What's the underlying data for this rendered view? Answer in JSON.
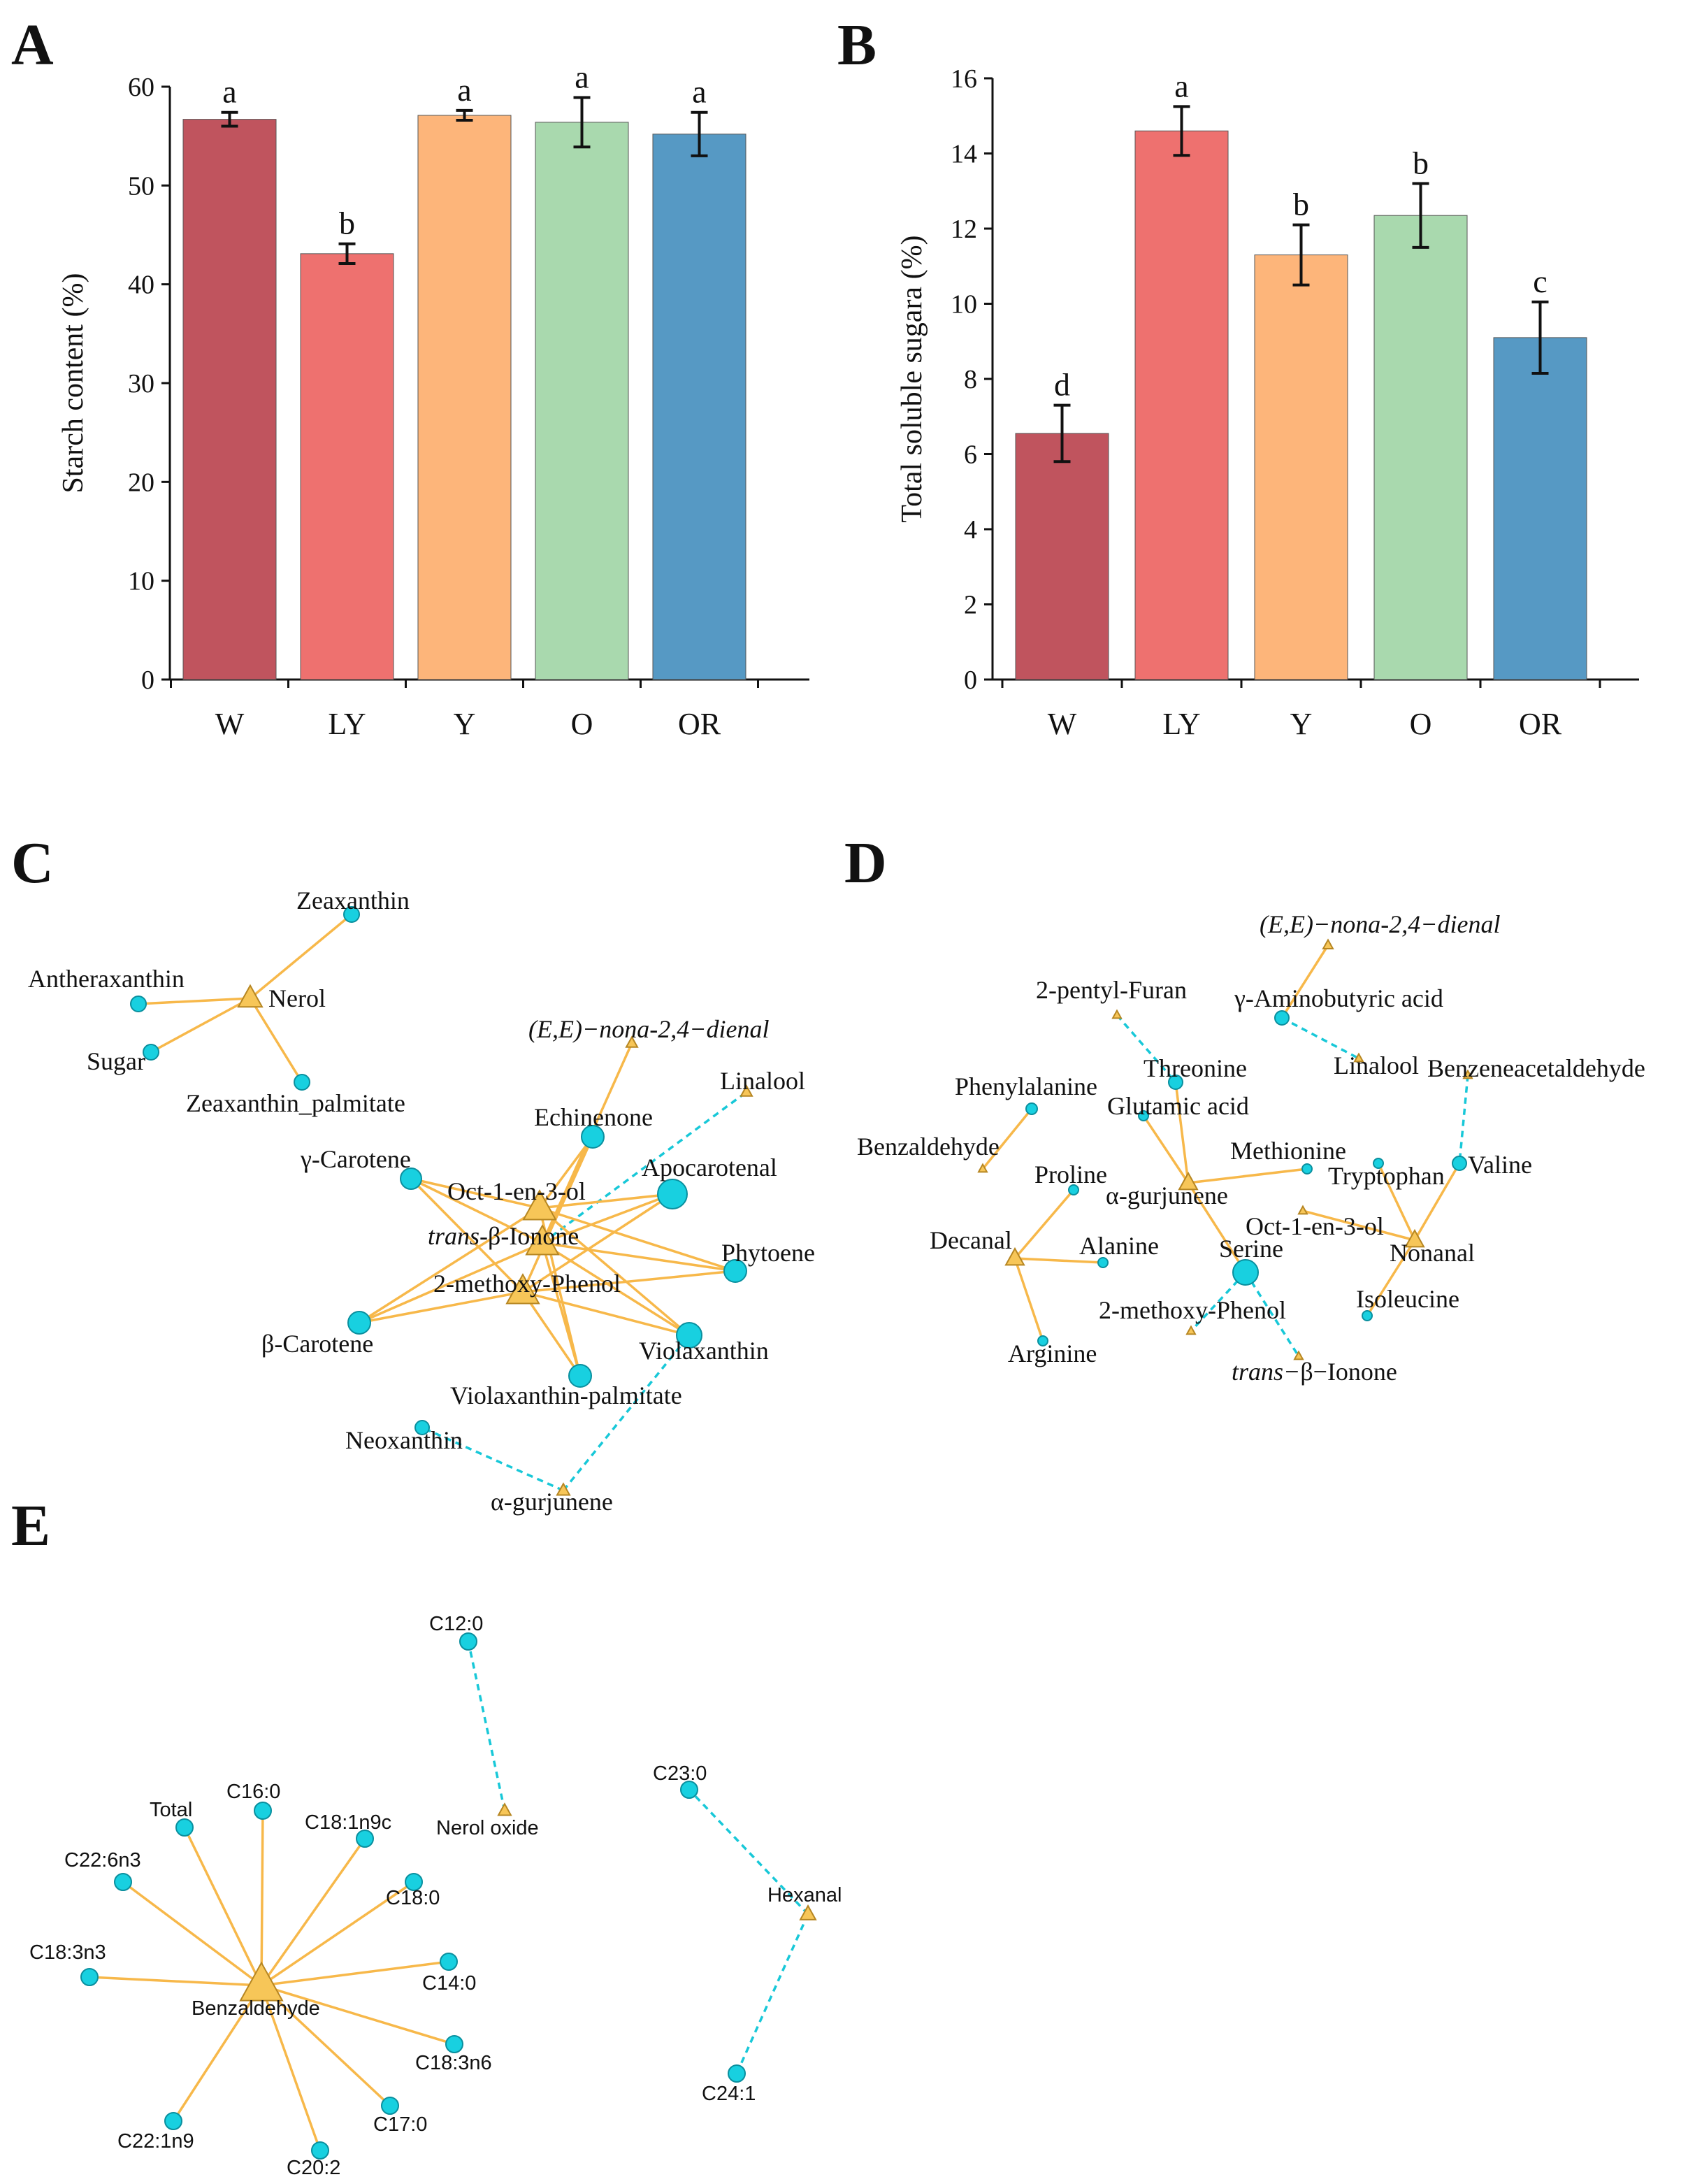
{
  "panels": {
    "A": "A",
    "B": "B",
    "C": "C",
    "D": "D",
    "E": "E"
  },
  "chart_data": [
    {
      "id": "A",
      "type": "bar",
      "title": "",
      "categories": [
        "W",
        "LY",
        "Y",
        "O",
        "OR"
      ],
      "values": [
        56.7,
        43.1,
        57.1,
        56.4,
        55.2
      ],
      "errors": [
        0.7,
        1.0,
        0.5,
        2.5,
        2.2
      ],
      "significance": [
        "a",
        "b",
        "a",
        "a",
        "a"
      ],
      "colors": [
        "#c0545e",
        "#ee716f",
        "#fdb57a",
        "#a9d9ae",
        "#5699c4"
      ],
      "xlabel": "",
      "ylabel": "Starch content  (%)",
      "ylim": [
        0,
        60
      ],
      "yticks": [
        0,
        10,
        20,
        30,
        40,
        50,
        60
      ],
      "grid": false
    },
    {
      "id": "B",
      "type": "bar",
      "title": "",
      "categories": [
        "W",
        "LY",
        "Y",
        "O",
        "OR"
      ],
      "values": [
        6.55,
        14.6,
        11.3,
        12.35,
        9.1
      ],
      "errors": [
        0.75,
        0.65,
        0.8,
        0.85,
        0.95
      ],
      "significance": [
        "d",
        "a",
        "b",
        "b",
        "c"
      ],
      "colors": [
        "#c0545e",
        "#ee716f",
        "#fdb57a",
        "#a9d9ae",
        "#5699c4"
      ],
      "xlabel": "",
      "ylabel": "Total soluble sugara (%)",
      "ylim": [
        0,
        16
      ],
      "yticks": [
        0,
        2,
        4,
        6,
        8,
        10,
        12,
        14,
        16
      ],
      "grid": false
    }
  ],
  "networks": {
    "C": {
      "nodes": [
        {
          "id": "zea",
          "label": "Zeaxanthin",
          "kind": "metabolite"
        },
        {
          "id": "anth",
          "label": "Antheraxanthin",
          "kind": "metabolite"
        },
        {
          "id": "nerol",
          "label": "Nerol",
          "kind": "volatile"
        },
        {
          "id": "sugar",
          "label": "Sugar",
          "kind": "metabolite"
        },
        {
          "id": "zeap",
          "label": "Zeaxanthin_palmitate",
          "kind": "metabolite"
        },
        {
          "id": "ee",
          "label": "(E,E)−nona-2,4−dienal",
          "kind": "volatile",
          "italic": true
        },
        {
          "id": "lin",
          "label": "Linalool",
          "kind": "volatile"
        },
        {
          "id": "ech",
          "label": "Echinenone",
          "kind": "metabolite"
        },
        {
          "id": "apo",
          "label": "Apocarotenal",
          "kind": "metabolite"
        },
        {
          "id": "gcar",
          "label": "γ-Carotene",
          "kind": "metabolite"
        },
        {
          "id": "oct",
          "label": "Oct-1-en-3-ol",
          "kind": "volatile"
        },
        {
          "id": "ion",
          "label": "β-Ionone",
          "kind": "volatile",
          "prefix": "trans-"
        },
        {
          "id": "phy",
          "label": "Phytoene",
          "kind": "metabolite"
        },
        {
          "id": "mph",
          "label": "2-methoxy-Phenol",
          "kind": "volatile"
        },
        {
          "id": "bcar",
          "label": "β-Carotene",
          "kind": "metabolite"
        },
        {
          "id": "vio",
          "label": "Violaxanthin",
          "kind": "metabolite"
        },
        {
          "id": "viop",
          "label": "Violaxanthin-palmitate",
          "kind": "metabolite"
        },
        {
          "id": "neo",
          "label": "Neoxanthin",
          "kind": "metabolite"
        },
        {
          "id": "agur",
          "label": "α-gurjunene",
          "kind": "volatile"
        }
      ],
      "edges": [
        [
          "nerol",
          "zea",
          "pos"
        ],
        [
          "nerol",
          "anth",
          "pos"
        ],
        [
          "nerol",
          "sugar",
          "pos"
        ],
        [
          "nerol",
          "zeap",
          "pos"
        ],
        [
          "ion",
          "ee",
          "pos"
        ],
        [
          "ion",
          "lin",
          "neg"
        ],
        [
          "oct",
          "ech",
          "pos"
        ],
        [
          "oct",
          "apo",
          "pos"
        ],
        [
          "oct",
          "gcar",
          "pos"
        ],
        [
          "oct",
          "phy",
          "pos"
        ],
        [
          "oct",
          "bcar",
          "pos"
        ],
        [
          "oct",
          "vio",
          "pos"
        ],
        [
          "oct",
          "viop",
          "pos"
        ],
        [
          "ion",
          "ech",
          "pos"
        ],
        [
          "ion",
          "apo",
          "pos"
        ],
        [
          "ion",
          "gcar",
          "pos"
        ],
        [
          "ion",
          "phy",
          "pos"
        ],
        [
          "ion",
          "bcar",
          "pos"
        ],
        [
          "ion",
          "vio",
          "pos"
        ],
        [
          "ion",
          "viop",
          "pos"
        ],
        [
          "mph",
          "ech",
          "pos"
        ],
        [
          "mph",
          "apo",
          "pos"
        ],
        [
          "mph",
          "gcar",
          "pos"
        ],
        [
          "mph",
          "phy",
          "pos"
        ],
        [
          "mph",
          "bcar",
          "pos"
        ],
        [
          "mph",
          "vio",
          "pos"
        ],
        [
          "mph",
          "viop",
          "pos"
        ],
        [
          "agur",
          "neo",
          "neg"
        ],
        [
          "agur",
          "vio",
          "neg"
        ]
      ]
    },
    "D": {
      "nodes": [
        {
          "id": "ee",
          "label": "(E,E)−nona-2,4−dienal",
          "kind": "volatile",
          "italic": true
        },
        {
          "id": "pf",
          "label": "2-pentyl-Furan",
          "kind": "volatile"
        },
        {
          "id": "gaba",
          "label": "γ-Aminobutyric acid",
          "kind": "metabolite"
        },
        {
          "id": "lin",
          "label": "Linalool",
          "kind": "volatile"
        },
        {
          "id": "phe",
          "label": "Phenylalanine",
          "kind": "metabolite"
        },
        {
          "id": "thr",
          "label": "Threonine",
          "kind": "metabolite"
        },
        {
          "id": "bzd",
          "label": "Benzeneacetaldehyde",
          "kind": "volatile"
        },
        {
          "id": "glu",
          "label": "Glutamic acid",
          "kind": "metabolite"
        },
        {
          "id": "bza",
          "label": "Benzaldehyde",
          "kind": "volatile"
        },
        {
          "id": "met",
          "label": "Methionine",
          "kind": "metabolite"
        },
        {
          "id": "pro",
          "label": "Proline",
          "kind": "metabolite"
        },
        {
          "id": "agur",
          "label": "α-gurjunene",
          "kind": "volatile"
        },
        {
          "id": "trp",
          "label": "Tryptophan",
          "kind": "metabolite"
        },
        {
          "id": "val",
          "label": "Valine",
          "kind": "metabolite"
        },
        {
          "id": "oct",
          "label": "Oct-1-en-3-ol",
          "kind": "volatile"
        },
        {
          "id": "dec",
          "label": "Decanal",
          "kind": "volatile"
        },
        {
          "id": "ala",
          "label": "Alanine",
          "kind": "metabolite"
        },
        {
          "id": "ser",
          "label": "Serine",
          "kind": "metabolite"
        },
        {
          "id": "non",
          "label": "Nonanal",
          "kind": "volatile"
        },
        {
          "id": "iso",
          "label": "Isoleucine",
          "kind": "metabolite"
        },
        {
          "id": "mph",
          "label": "2-methoxy-Phenol",
          "kind": "volatile"
        },
        {
          "id": "arg",
          "label": "Arginine",
          "kind": "metabolite"
        },
        {
          "id": "ion",
          "label": "β−Ionone",
          "kind": "volatile",
          "prefix": "trans−"
        }
      ],
      "edges": [
        [
          "ee",
          "gaba",
          "pos"
        ],
        [
          "gaba",
          "lin",
          "neg"
        ],
        [
          "pf",
          "thr",
          "neg"
        ],
        [
          "bzd",
          "val",
          "neg"
        ],
        [
          "phe",
          "bza",
          "pos"
        ],
        [
          "agur",
          "glu",
          "pos"
        ],
        [
          "agur",
          "thr",
          "pos"
        ],
        [
          "agur",
          "met",
          "pos"
        ],
        [
          "agur",
          "ser",
          "pos"
        ],
        [
          "dec",
          "pro",
          "pos"
        ],
        [
          "dec",
          "ala",
          "pos"
        ],
        [
          "dec",
          "arg",
          "pos"
        ],
        [
          "non",
          "trp",
          "pos"
        ],
        [
          "non",
          "val",
          "pos"
        ],
        [
          "non",
          "iso",
          "pos"
        ],
        [
          "non",
          "oct",
          "pos"
        ],
        [
          "ser",
          "mph",
          "neg"
        ],
        [
          "ser",
          "ion",
          "neg"
        ]
      ]
    },
    "E": {
      "nodes": [
        {
          "id": "c120",
          "label": "C12:0",
          "kind": "metabolite"
        },
        {
          "id": "no",
          "label": "Nerol oxide",
          "kind": "volatile"
        },
        {
          "id": "c230",
          "label": "C23:0",
          "kind": "metabolite"
        },
        {
          "id": "hex",
          "label": "Hexanal",
          "kind": "volatile"
        },
        {
          "id": "c241",
          "label": "C24:1",
          "kind": "metabolite"
        },
        {
          "id": "tot",
          "label": "Total",
          "kind": "metabolite"
        },
        {
          "id": "c160",
          "label": "C16:0",
          "kind": "metabolite"
        },
        {
          "id": "c181",
          "label": "C18:1n9c",
          "kind": "metabolite"
        },
        {
          "id": "c226",
          "label": "C22:6n3",
          "kind": "metabolite"
        },
        {
          "id": "c180",
          "label": "C18:0",
          "kind": "metabolite"
        },
        {
          "id": "c183n3",
          "label": "C18:3n3",
          "kind": "metabolite"
        },
        {
          "id": "c140",
          "label": "C14:0",
          "kind": "metabolite"
        },
        {
          "id": "bza",
          "label": "Benzaldehyde",
          "kind": "volatile"
        },
        {
          "id": "c183n6",
          "label": "C18:3n6",
          "kind": "metabolite"
        },
        {
          "id": "c170",
          "label": "C17:0",
          "kind": "metabolite"
        },
        {
          "id": "c221",
          "label": "C22:1n9",
          "kind": "metabolite"
        },
        {
          "id": "c202",
          "label": "C20:2",
          "kind": "metabolite"
        }
      ],
      "edges": [
        [
          "no",
          "c120",
          "neg"
        ],
        [
          "hex",
          "c230",
          "neg"
        ],
        [
          "hex",
          "c241",
          "neg"
        ],
        [
          "bza",
          "tot",
          "pos"
        ],
        [
          "bza",
          "c160",
          "pos"
        ],
        [
          "bza",
          "c181",
          "pos"
        ],
        [
          "bza",
          "c226",
          "pos"
        ],
        [
          "bza",
          "c180",
          "pos"
        ],
        [
          "bza",
          "c183n3",
          "pos"
        ],
        [
          "bza",
          "c140",
          "pos"
        ],
        [
          "bza",
          "c183n6",
          "pos"
        ],
        [
          "bza",
          "c170",
          "pos"
        ],
        [
          "bza",
          "c221",
          "pos"
        ],
        [
          "bza",
          "c202",
          "pos"
        ]
      ]
    }
  }
}
